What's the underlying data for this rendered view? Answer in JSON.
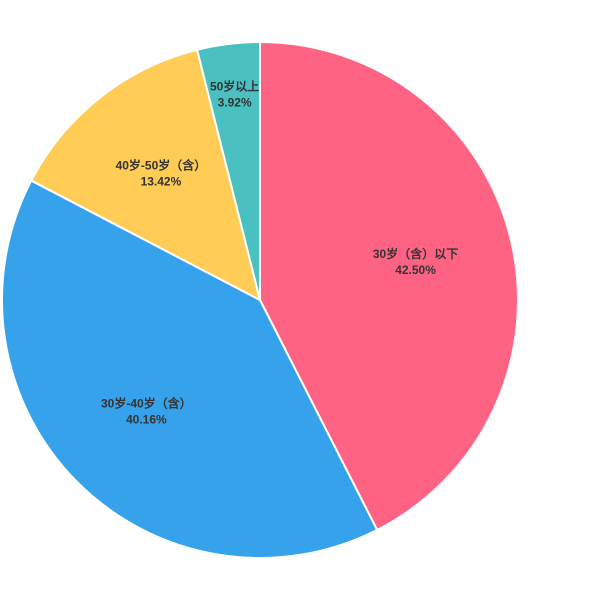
{
  "chart_data": {
    "type": "pie",
    "categories": [
      "30岁（含）以下",
      "30岁-40岁（含）",
      "40岁-50岁（含）",
      "50岁以上"
    ],
    "values": [
      42.5,
      40.16,
      13.42,
      3.92
    ],
    "value_labels": [
      "42.50%",
      "40.16%",
      "13.42%",
      "3.92%"
    ],
    "colors": [
      "#ff6384",
      "#36a2eb",
      "#ffcd56",
      "#4bc0c0"
    ]
  }
}
